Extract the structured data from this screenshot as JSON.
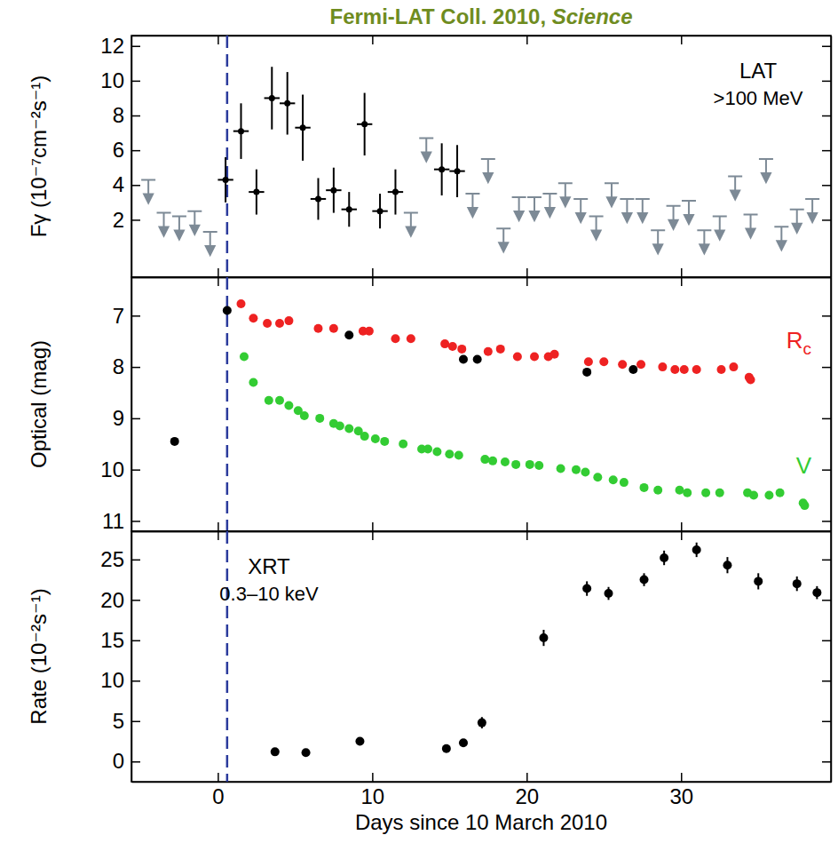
{
  "chart_data": [
    {
      "type": "scatter",
      "title": "Fermi-LAT Coll. 2010, Science",
      "ylabel": "Fγ (10⁻⁷cm⁻²s⁻¹)",
      "annotations": [
        "LAT",
        ">100 MeV"
      ],
      "xlim": [
        -5.6,
        39.7
      ],
      "xticks": [
        0,
        10,
        20,
        30
      ],
      "ylim": [
        -1.3,
        12.6
      ],
      "yticks": [
        2,
        4,
        6,
        8,
        10,
        12
      ],
      "tick_labels": "y",
      "grid": false,
      "vline": 0.6,
      "series": [
        {
          "color": "#000000",
          "marker": "dot",
          "x": [
            0.5,
            1.5,
            2.5,
            3.5,
            4.5,
            5.5,
            6.5,
            7.5,
            8.5,
            9.5,
            10.5,
            11.5,
            14.5,
            15.5
          ],
          "values": [
            4.3,
            7.1,
            3.6,
            9.0,
            8.7,
            7.3,
            3.2,
            3.7,
            2.6,
            7.5,
            2.5,
            3.6,
            4.9,
            4.8
          ],
          "errors": [
            1.3,
            1.6,
            1.3,
            1.8,
            1.8,
            1.9,
            1.2,
            1.3,
            1.0,
            1.8,
            1.0,
            1.3,
            1.5,
            1.5
          ],
          "x_errors": [
            0.5,
            0.5,
            0.5,
            0.5,
            0.5,
            0.5,
            0.5,
            0.5,
            0.5,
            0.5,
            0.5,
            0.5,
            0.5,
            0.5
          ]
        },
        {
          "color": "#7d8a96",
          "marker": "arrow",
          "x": [
            -4.5,
            -3.5,
            -2.5,
            -1.5,
            -0.5,
            12.5,
            13.5,
            16.5,
            17.5,
            18.5,
            19.5,
            20.5,
            21.5,
            22.5,
            23.5,
            24.5,
            25.5,
            26.5,
            27.5,
            28.5,
            29.5,
            30.5,
            31.5,
            32.5,
            33.5,
            34.5,
            35.5,
            36.5,
            37.5,
            38.5
          ],
          "values": [
            4.3,
            2.4,
            2.2,
            2.5,
            1.3,
            2.4,
            6.7,
            3.5,
            5.5,
            1.5,
            3.3,
            3.3,
            3.5,
            4.1,
            3.2,
            2.2,
            4.1,
            3.2,
            3.2,
            1.4,
            2.8,
            3.1,
            1.4,
            2.2,
            4.5,
            2.3,
            5.5,
            1.6,
            2.6,
            3.2
          ]
        }
      ]
    },
    {
      "type": "scatter",
      "ylabel": "Optical (mag)",
      "xlim": [
        -5.6,
        39.7
      ],
      "xticks": [
        0,
        10,
        20,
        30
      ],
      "ylim": [
        11.2,
        6.25
      ],
      "yticks": [
        7,
        8,
        9,
        10,
        11
      ],
      "tick_labels": "y",
      "grid": false,
      "vline": 0.6,
      "series": [
        {
          "name": "Rc",
          "color": "#ee2222",
          "marker": "circle",
          "x": [
            1.5,
            2.3,
            3.2,
            4.0,
            4.6,
            6.5,
            7.5,
            9.4,
            9.8,
            11.5,
            12.5,
            14.7,
            15.2,
            15.8,
            17.5,
            18.3,
            19.4,
            20.5,
            21.4,
            21.8,
            24.0,
            25.0,
            26.2,
            27.4,
            28.8,
            29.6,
            30.2,
            31.0,
            32.6,
            33.4,
            34.4,
            34.5
          ],
          "values": [
            6.77,
            7.05,
            7.15,
            7.15,
            7.1,
            7.25,
            7.25,
            7.3,
            7.3,
            7.45,
            7.45,
            7.55,
            7.6,
            7.65,
            7.7,
            7.65,
            7.8,
            7.8,
            7.8,
            7.75,
            7.9,
            7.9,
            7.95,
            7.95,
            8.0,
            8.05,
            8.05,
            8.05,
            8.05,
            8.0,
            8.2,
            8.25
          ]
        },
        {
          "name": "V",
          "color": "#33cc33",
          "marker": "circle",
          "x": [
            1.7,
            2.3,
            3.3,
            4.0,
            4.6,
            5.2,
            5.6,
            6.6,
            7.5,
            7.9,
            8.5,
            9.1,
            9.5,
            10.2,
            10.8,
            12.0,
            13.2,
            13.6,
            14.2,
            15.0,
            15.6,
            17.3,
            17.8,
            18.6,
            19.3,
            20.2,
            20.8,
            22.2,
            23.2,
            23.8,
            24.6,
            25.6,
            26.3,
            27.6,
            28.5,
            29.9,
            30.4,
            31.6,
            32.5,
            34.3,
            34.7,
            35.7,
            36.4,
            37.9,
            38.0
          ],
          "values": [
            7.8,
            8.3,
            8.65,
            8.65,
            8.75,
            8.85,
            8.95,
            9.0,
            9.1,
            9.15,
            9.2,
            9.25,
            9.35,
            9.4,
            9.45,
            9.5,
            9.6,
            9.6,
            9.65,
            9.7,
            9.72,
            9.8,
            9.83,
            9.85,
            9.9,
            9.9,
            9.92,
            9.98,
            10.0,
            10.05,
            10.15,
            10.2,
            10.25,
            10.35,
            10.4,
            10.4,
            10.45,
            10.45,
            10.45,
            10.45,
            10.5,
            10.5,
            10.45,
            10.65,
            10.7
          ]
        },
        {
          "color": "#000000",
          "marker": "circle",
          "x": [
            -2.8,
            0.6,
            8.5,
            15.9,
            16.8,
            23.9,
            26.9
          ],
          "values": [
            9.45,
            6.9,
            7.38,
            7.85,
            7.85,
            8.1,
            8.05
          ]
        }
      ]
    },
    {
      "type": "scatter",
      "ylabel": "Rate (10⁻²s⁻¹)",
      "xlabel": "Days since 10 March 2010",
      "annotations": [
        "XRT",
        "0.3–10 keV"
      ],
      "xlim": [
        -5.6,
        39.7
      ],
      "xticks": [
        0,
        10,
        20,
        30
      ],
      "ylim": [
        -2.5,
        28.5
      ],
      "yticks": [
        0,
        5,
        10,
        15,
        20,
        25
      ],
      "grid": false,
      "vline": 0.6,
      "series": [
        {
          "color": "#000000",
          "marker": "circle",
          "x": [
            3.7,
            5.7,
            9.2,
            14.8,
            15.9,
            17.1,
            21.1,
            23.9,
            25.3,
            27.6,
            28.9,
            31.0,
            33.0,
            35.0,
            37.5,
            38.8
          ],
          "values": [
            1.2,
            1.1,
            2.5,
            1.6,
            2.3,
            4.8,
            15.3,
            21.4,
            20.8,
            22.5,
            25.2,
            26.2,
            24.3,
            22.3,
            22.0,
            20.9
          ],
          "errors": [
            0.3,
            0.3,
            0.5,
            0.3,
            0.4,
            0.7,
            1.0,
            0.9,
            0.8,
            0.8,
            0.9,
            0.9,
            1.0,
            1.0,
            0.9,
            0.8
          ]
        }
      ]
    }
  ]
}
